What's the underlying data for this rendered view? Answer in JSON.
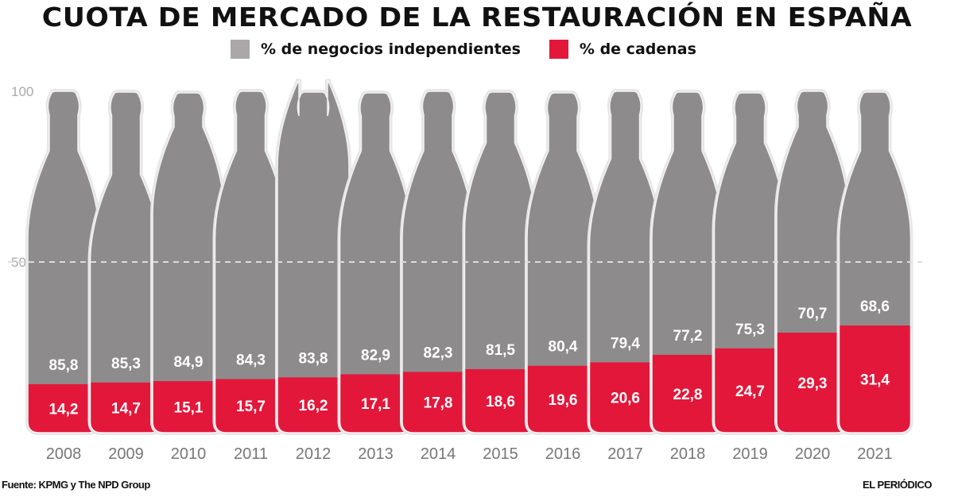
{
  "chart_data": {
    "type": "bar",
    "stacked": true,
    "title": "CUOTA DE MERCADO DE LA RESTAURACIÓN EN ESPAÑA",
    "categories": [
      "2008",
      "2009",
      "2010",
      "2011",
      "2012",
      "2013",
      "2014",
      "2015",
      "2016",
      "2017",
      "2018",
      "2019",
      "2020",
      "2021"
    ],
    "series": [
      {
        "name": "% de cadenas",
        "color": "#e3173a",
        "values": [
          14.2,
          14.7,
          15.1,
          15.7,
          16.2,
          17.1,
          17.8,
          18.6,
          19.6,
          20.6,
          22.8,
          24.7,
          29.3,
          31.4
        ]
      },
      {
        "name": "% de negocios independientes",
        "color": "#8e8b8d",
        "values": [
          85.8,
          85.3,
          84.9,
          84.3,
          83.8,
          82.9,
          82.3,
          81.5,
          80.4,
          79.4,
          77.2,
          75.3,
          70.7,
          68.6
        ]
      }
    ],
    "value_labels": {
      "cadenas": [
        "14,2",
        "14,7",
        "15,1",
        "15,7",
        "16,2",
        "17,1",
        "17,8",
        "18,6",
        "19,6",
        "20,6",
        "22,8",
        "24,7",
        "29,3",
        "31,4"
      ],
      "independientes": [
        "85,8",
        "85,3",
        "84,9",
        "84,3",
        "83,8",
        "82,9",
        "82,3",
        "81,5",
        "80,4",
        "79,4",
        "77,2",
        "75,3",
        "70,7",
        "68,6"
      ]
    },
    "yticks": [
      "100",
      "50"
    ],
    "ylim": [
      0,
      100
    ],
    "grid": "dashed line at 50",
    "legend_position": "top-center",
    "bar_shape": "bottle"
  },
  "source": "Fuente: KPMG y The NPD Group",
  "publisher": "EL PERIÓDICO"
}
